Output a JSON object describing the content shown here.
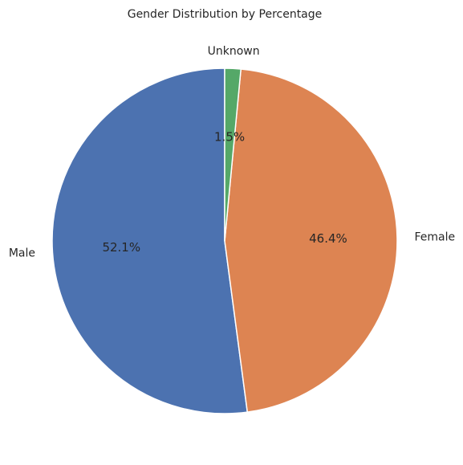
{
  "chart_data": {
    "type": "pie",
    "title": "Gender Distribution by Percentage",
    "categories": [
      "Male",
      "Female",
      "Unknown"
    ],
    "values": [
      52.1,
      46.4,
      1.5
    ],
    "value_labels": [
      "52.1%",
      "46.4%",
      "1.5%"
    ],
    "colors": [
      "#4c72b0",
      "#dd8452",
      "#55a868"
    ],
    "start_angle_deg": 90,
    "direction": "counterclockwise",
    "legend": "none"
  }
}
